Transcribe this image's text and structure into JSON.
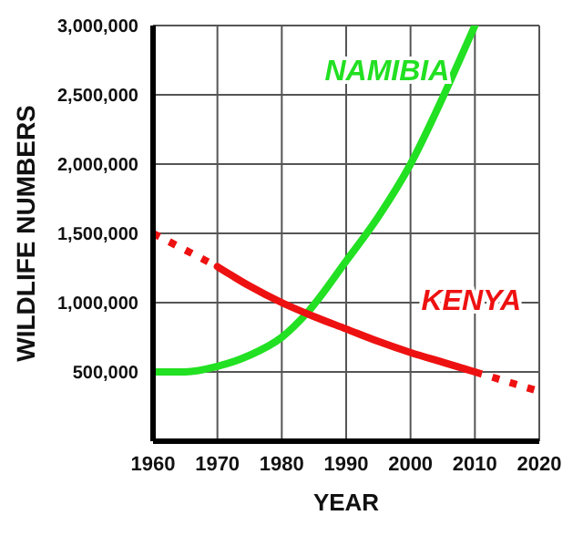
{
  "chart_data": {
    "type": "line",
    "xlabel": "YEAR",
    "ylabel": "WILDLIFE  NUMBERS",
    "xlim": [
      1960,
      2020
    ],
    "xticks": [
      1960,
      1970,
      1980,
      1990,
      2000,
      2010,
      2020
    ],
    "ylim": [
      0,
      3000000
    ],
    "yticks": [
      {
        "value": 0,
        "label": null
      },
      {
        "value": 500000,
        "label": "500,000"
      },
      {
        "value": 1000000,
        "label": "1,000,000"
      },
      {
        "value": 1500000,
        "label": "1,500,000"
      },
      {
        "value": 2000000,
        "label": "2,000,000"
      },
      {
        "value": 2500000,
        "label": "2,500,000"
      },
      {
        "value": 3000000,
        "label": "3,000,000"
      }
    ],
    "grid": true,
    "marker": "none",
    "series": [
      {
        "name": "NAMIBIA",
        "color": "#22e022",
        "x": [
          1960,
          1965,
          1970,
          1975,
          1980,
          1984,
          1990,
          1995,
          2000,
          2005,
          2010
        ],
        "values": [
          500000,
          500000,
          540000,
          620000,
          750000,
          930000,
          1300000,
          1620000,
          2000000,
          2480000,
          3000000
        ]
      },
      {
        "name": "KENYA",
        "color": "#ee1111",
        "x": [
          1970,
          1975,
          1980,
          1985,
          1990,
          1995,
          2000,
          2005,
          2010
        ],
        "values": [
          1260000,
          1120000,
          1000000,
          900000,
          810000,
          720000,
          640000,
          570000,
          500000
        ]
      },
      {
        "color": "#ee1111",
        "line_style": "dotted",
        "x": [
          1960,
          1965,
          1970
        ],
        "values": [
          1500000,
          1380000,
          1260000
        ]
      },
      {
        "color": "#ee1111",
        "line_style": "dotted",
        "x": [
          2010,
          2015,
          2020
        ],
        "values": [
          500000,
          430000,
          360000
        ]
      }
    ]
  }
}
